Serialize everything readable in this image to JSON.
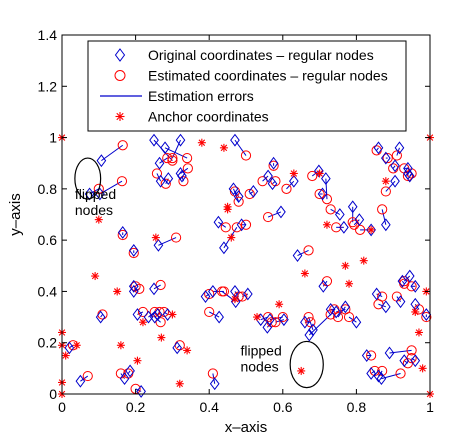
{
  "chart_data": {
    "type": "scatter",
    "title": "",
    "xlabel": "x–axis",
    "ylabel": "y–axis",
    "xlim": [
      0,
      1
    ],
    "ylim": [
      0,
      1.4
    ],
    "xticks": [
      "0",
      "0.2",
      "0.4",
      "0.6",
      "0.8",
      "1"
    ],
    "yticks": [
      "0",
      "0.2",
      "0.4",
      "0.6",
      "0.8",
      "1",
      "1.2",
      "1.4"
    ],
    "xtick_values": [
      0,
      0.2,
      0.4,
      0.6,
      0.8,
      1
    ],
    "ytick_values": [
      0,
      0.2,
      0.4,
      0.6,
      0.8,
      1,
      1.2,
      1.4
    ],
    "grid": false,
    "legend_position": "top-right",
    "colors": {
      "original": "#0000cc",
      "estimated": "#ff0000",
      "error": "#0000cc",
      "anchor": "#ff0000"
    },
    "legend": [
      {
        "label": "Original coordinates – regular nodes",
        "marker": "diamond"
      },
      {
        "label": "Estimated coordinates – regular nodes",
        "marker": "circle"
      },
      {
        "label": "Estimation errors",
        "marker": "line"
      },
      {
        "label": "Anchor coordinates",
        "marker": "star"
      }
    ],
    "annotations": [
      {
        "lines": [
          "flipped",
          "nodes"
        ],
        "text_at": [
          0.035,
          0.76
        ],
        "ellipse_center": [
          0.07,
          0.84
        ],
        "ellipse_radius": [
          0.035,
          0.08
        ]
      },
      {
        "lines": [
          "flipped",
          "nodes"
        ],
        "text_at": [
          0.485,
          0.15
        ],
        "ellipse_center": [
          0.665,
          0.115
        ],
        "ellipse_radius": [
          0.045,
          0.09
        ]
      }
    ],
    "series": [
      {
        "name": "Original coordinates – regular nodes",
        "kind": "original",
        "x": [
          0.107,
          0.103,
          0.075,
          0.165,
          0.195,
          0.195,
          0.25,
          0.26,
          0.268,
          0.235,
          0.25,
          0.265,
          0.205,
          0.287,
          0.252,
          0.322,
          0.322,
          0.28,
          0.289,
          0.326,
          0.262,
          0.425,
          0.466,
          0.44,
          0.48,
          0.47,
          0.488,
          0.52,
          0.56,
          0.572,
          0.575,
          0.595,
          0.63,
          0.672,
          0.698,
          0.708,
          0.717,
          0.755,
          0.766,
          0.79,
          0.808,
          0.84,
          0.88,
          0.905,
          0.917,
          0.94,
          0.86,
          0.88,
          0.905,
          0.94,
          0.945,
          0.39,
          0.41,
          0.47,
          0.472,
          0.565,
          0.54,
          0.558,
          0.603,
          0.64,
          0.66,
          0.682,
          0.71,
          0.73,
          0.745,
          0.77,
          0.8,
          0.828,
          0.855,
          0.88,
          0.92,
          0.925,
          0.945,
          0.96,
          0.96,
          0.99,
          0.84,
          0.86,
          0.868,
          0.89,
          0.93,
          0.96,
          0.05,
          0.02,
          0.105,
          0.17,
          0.185,
          0.195,
          0.215,
          0.313,
          0.427,
          0.415,
          0.505
        ],
        "y": [
          0.91,
          0.78,
          0.78,
          0.63,
          0.56,
          0.42,
          0.41,
          0.31,
          0.83,
          0.3,
          0.99,
          0.9,
          0.31,
          0.31,
          0.3,
          0.86,
          0.99,
          0.96,
          0.84,
          0.85,
          0.58,
          0.67,
          0.8,
          0.57,
          0.77,
          0.99,
          0.66,
          0.79,
          0.85,
          0.82,
          0.9,
          0.71,
          0.83,
          0.23,
          0.87,
          0.78,
          0.84,
          0.7,
          0.65,
          0.73,
          0.68,
          0.64,
          0.66,
          0.83,
          0.96,
          0.86,
          0.96,
          0.92,
          0.89,
          0.88,
          0.85,
          0.38,
          0.4,
          0.4,
          0.36,
          0.29,
          0.29,
          0.26,
          0.29,
          0.54,
          0.28,
          0.25,
          0.42,
          0.33,
          0.32,
          0.34,
          0.28,
          0.15,
          0.39,
          0.34,
          0.36,
          0.44,
          0.46,
          0.42,
          0.35,
          0.31,
          0.08,
          0.07,
          0.06,
          0.16,
          0.13,
          0.13,
          0.05,
          0.18,
          0.3,
          0.06,
          0.09,
          0.4,
          0.01,
          0.18,
          0.3,
          0.04,
          0.39
        ]
      },
      {
        "name": "Estimated coordinates – regular nodes",
        "kind": "estimated",
        "x": [
          0.165,
          0.163,
          0.1,
          0.165,
          0.195,
          0.2,
          0.268,
          0.265,
          0.258,
          0.252,
          0.3,
          0.286,
          0.22,
          0.277,
          0.268,
          0.342,
          0.3,
          0.34,
          0.282,
          0.33,
          0.31,
          0.445,
          0.48,
          0.475,
          0.47,
          0.5,
          0.5,
          0.51,
          0.545,
          0.58,
          0.575,
          0.56,
          0.61,
          0.73,
          0.68,
          0.7,
          0.72,
          0.73,
          0.745,
          0.79,
          0.794,
          0.81,
          0.87,
          0.88,
          0.91,
          0.94,
          0.855,
          0.885,
          0.9,
          0.93,
          0.95,
          0.4,
          0.44,
          0.48,
          0.435,
          0.6,
          0.56,
          0.57,
          0.58,
          0.67,
          0.675,
          0.67,
          0.72,
          0.74,
          0.77,
          0.75,
          0.78,
          0.84,
          0.87,
          0.86,
          0.91,
          0.93,
          0.93,
          0.95,
          0.97,
          0.99,
          0.85,
          0.87,
          0.92,
          0.95,
          0.94,
          0.95,
          0.07,
          0.03,
          0.11,
          0.16,
          0.18,
          0.21,
          0.2,
          0.32,
          0.4,
          0.41,
          0.49
        ],
        "y": [
          0.97,
          0.83,
          0.8,
          0.62,
          0.55,
          0.42,
          0.425,
          0.32,
          0.86,
          0.32,
          0.91,
          0.92,
          0.32,
          0.32,
          0.28,
          0.88,
          0.92,
          0.92,
          0.82,
          0.83,
          0.61,
          0.65,
          0.75,
          0.65,
          0.79,
          0.93,
          0.66,
          0.78,
          0.83,
          0.83,
          0.89,
          0.69,
          0.8,
          0.31,
          0.85,
          0.78,
          0.76,
          0.72,
          0.65,
          0.67,
          0.66,
          0.64,
          0.72,
          0.79,
          0.93,
          0.85,
          0.95,
          0.92,
          0.88,
          0.88,
          0.86,
          0.39,
          0.4,
          0.38,
          0.4,
          0.3,
          0.3,
          0.28,
          0.28,
          0.56,
          0.28,
          0.3,
          0.44,
          0.33,
          0.33,
          0.3,
          0.3,
          0.15,
          0.38,
          0.35,
          0.38,
          0.43,
          0.44,
          0.42,
          0.33,
          0.3,
          0.09,
          0.09,
          0.08,
          0.17,
          0.12,
          0.14,
          0.07,
          0.19,
          0.31,
          0.08,
          0.08,
          0.41,
          0.02,
          0.19,
          0.32,
          0.08,
          0.38
        ]
      },
      {
        "name": "Anchor coordinates",
        "kind": "anchor",
        "x": [
          0.0,
          0.0,
          0.0,
          0.0,
          0.0,
          1.0,
          1.0,
          0.04,
          0.09,
          0.15,
          0.16,
          0.205,
          0.27,
          0.3,
          0.32,
          0.34,
          0.38,
          0.44,
          0.45,
          0.45,
          0.47,
          0.46,
          0.63,
          0.65,
          0.7,
          0.72,
          0.77,
          0.78,
          0.82,
          0.84,
          0.88,
          0.96,
          0.97,
          0.98,
          0.99,
          0.53,
          0.59,
          0.22,
          0.255,
          0.66,
          0.1,
          0.01
        ],
        "y": [
          1.0,
          0.19,
          0.045,
          0.0,
          0.24,
          1.0,
          0.0,
          0.19,
          0.46,
          0.4,
          0.19,
          0.13,
          0.22,
          0.31,
          0.04,
          0.17,
          0.98,
          0.96,
          0.73,
          0.72,
          0.37,
          0.61,
          0.86,
          0.09,
          0.86,
          0.66,
          0.5,
          0.43,
          0.52,
          0.64,
          0.83,
          0.32,
          0.24,
          0.1,
          0.4,
          0.3,
          0.35,
          0.28,
          0.61,
          0.47,
          0.68,
          0.15
        ]
      }
    ]
  }
}
